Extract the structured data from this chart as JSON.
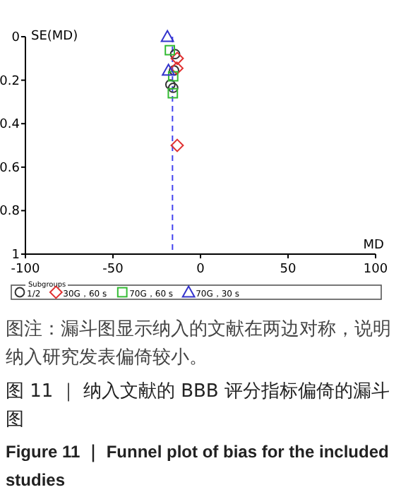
{
  "chart_data": {
    "type": "scatter",
    "title": "图 11 ｜ 纳入文献的 BBB 评分指标偏倚的漏斗图",
    "subtitle": "Figure 11 ｜ Funnel plot of bias for the included studies",
    "xlabel": "MD",
    "ylabel": "SE(MD)",
    "legend_title": "Subgroups",
    "annotations": [
      "图注：漏斗图显示纳入的文献在两边对称，说明纳入研究发表偏倚较小。"
    ],
    "xlim": [
      -100,
      100
    ],
    "xticks": [
      -100,
      -50,
      0,
      50,
      100
    ],
    "ylim": [
      1,
      0
    ],
    "yticks": [
      0,
      0.2,
      0.4,
      0.6,
      0.8,
      1
    ],
    "grid": false,
    "legend": "bottom",
    "ref_lines": [
      {
        "axis": "x",
        "value": -16,
        "color": "#4444ee",
        "line_style": "dashed"
      }
    ],
    "series": [
      {
        "name": "1/2",
        "color": "#333333",
        "marker": "circle",
        "x": [
          -14.5,
          -15.1,
          -17.2,
          -15.6
        ],
        "values": [
          0.08,
          0.155,
          0.22,
          0.235
        ]
      },
      {
        "name": "30G，60 s",
        "color": "#e03030",
        "marker": "diamond",
        "x": [
          -13.3,
          -13.5,
          -13.3
        ],
        "values": [
          0.1,
          0.145,
          0.5
        ]
      },
      {
        "name": "70G，60 s",
        "color": "#33bb33",
        "marker": "square",
        "x": [
          -17.5,
          -15.6,
          -15.8
        ],
        "values": [
          0.062,
          0.182,
          0.26
        ]
      },
      {
        "name": "70G，30 s",
        "color": "#3333cc",
        "marker": "triangle",
        "x": [
          -18.9,
          -18.3
        ],
        "values": [
          0.0,
          0.155
        ]
      }
    ]
  }
}
